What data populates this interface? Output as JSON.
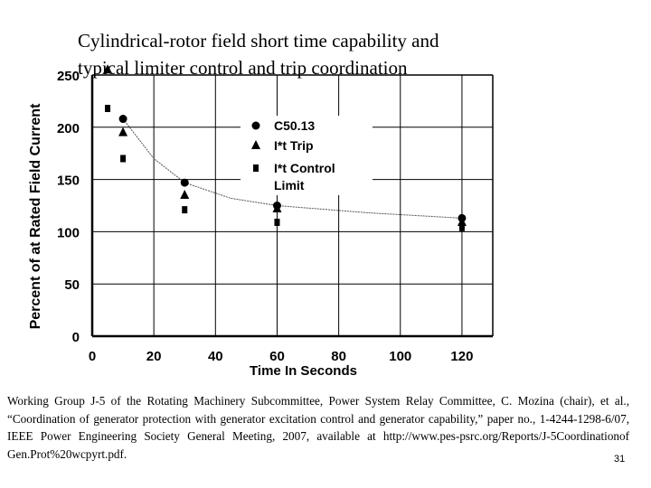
{
  "slide": {
    "title_line1": "Cylindrical-rotor field short time capability and",
    "title_line2": "typical limiter control and trip coordination",
    "citation": "Working Group J-5 of the Rotating Machinery Subcommittee, Power System Relay Committee, C. Mozina (chair), et al., “Coordination of generator protection with generator excitation control and generator capability,” paper no., 1-4244-1298-6/07, IEEE Power Engineering Society General Meeting, 2007, available at http://www.pes-psrc.org/Reports/J-5Coordinationof Gen.Prot%20wcpyrt.pdf.",
    "page_number": "31"
  },
  "chart_data": {
    "type": "scatter",
    "title": "",
    "xlabel": "Time In Seconds",
    "ylabel": "Percent of at Rated Field Current",
    "xlim": [
      0,
      130
    ],
    "ylim": [
      0,
      250
    ],
    "x_ticks": [
      0,
      20,
      40,
      60,
      80,
      100,
      120
    ],
    "y_ticks": [
      0,
      50,
      100,
      150,
      200,
      250
    ],
    "grid": true,
    "legend_position": "top-center",
    "series": [
      {
        "name": "C50.13",
        "marker": "circle",
        "color": "#000000",
        "x": [
          10,
          30,
          60,
          120
        ],
        "y": [
          208,
          147,
          125,
          113
        ]
      },
      {
        "name": "I*t Trip",
        "marker": "triangle",
        "color": "#000000",
        "x": [
          5,
          10,
          30,
          60,
          120
        ],
        "y": [
          255,
          195,
          135,
          122,
          109
        ]
      },
      {
        "name": "I*t Control Limit",
        "marker": "square",
        "color": "#000000",
        "x": [
          5,
          10,
          30,
          60,
          120
        ],
        "y": [
          218,
          170,
          121,
          109,
          104
        ]
      }
    ],
    "curve": {
      "x": [
        10,
        20,
        30,
        45,
        60,
        90,
        120
      ],
      "y": [
        208,
        170,
        147,
        132,
        125,
        118,
        113
      ]
    }
  }
}
